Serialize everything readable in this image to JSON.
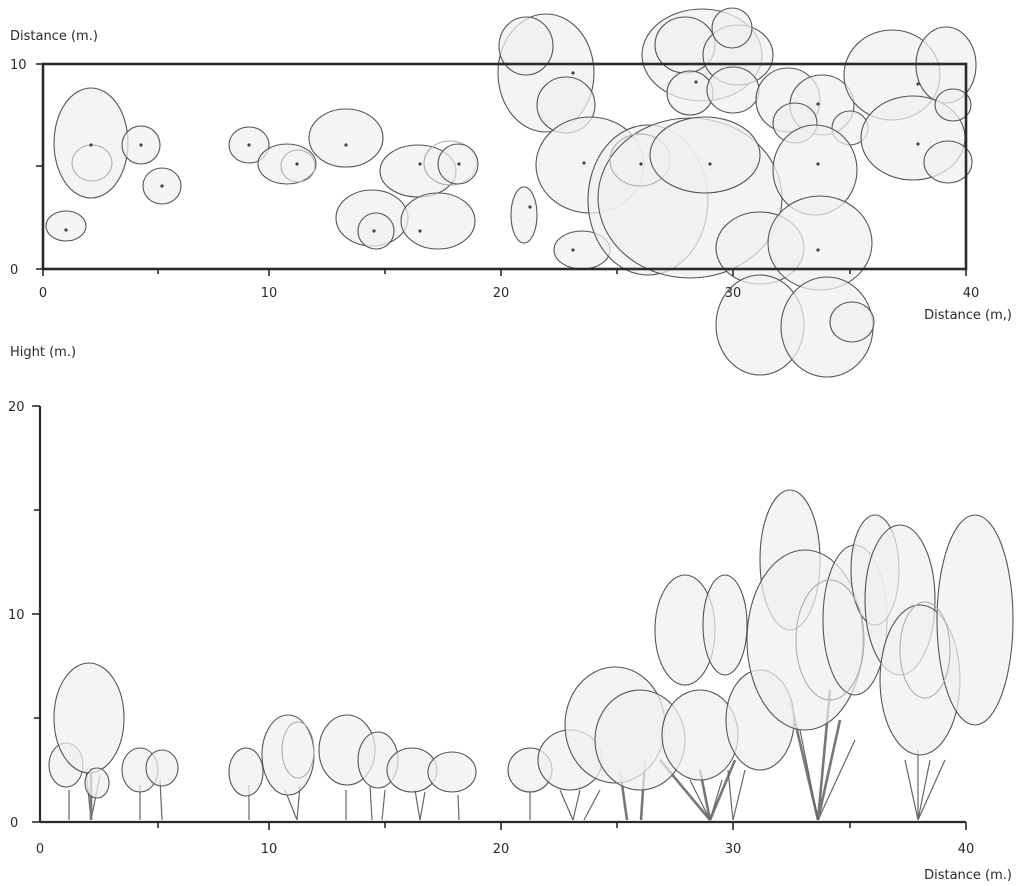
{
  "plan": {
    "y_title": "Distance (m.)",
    "x_title": "Distance (m,)",
    "y_ticks": [
      "10",
      "0"
    ],
    "x_ticks": [
      "0",
      "10",
      "20",
      "30",
      "40"
    ]
  },
  "profile": {
    "y_title": "Hight (m.)",
    "x_title": "Distance (m.)",
    "y_ticks": [
      "20",
      "10",
      "0"
    ],
    "x_ticks": [
      "0",
      "10",
      "20",
      "30",
      "40"
    ]
  },
  "colors": {
    "crown_fill": "#f0f0f0",
    "crown_outline": "#555555",
    "axis": "#2a2a2a"
  }
}
